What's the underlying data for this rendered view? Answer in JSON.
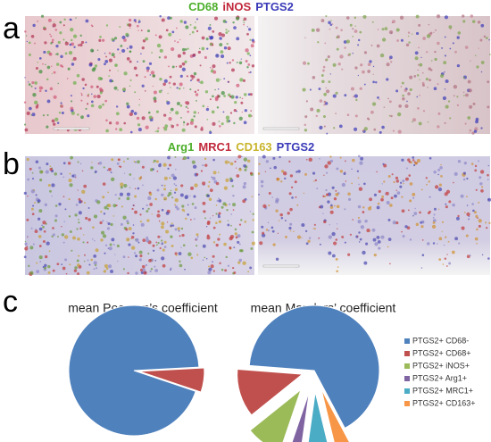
{
  "figure": {
    "panel_a": {
      "label": "a",
      "stains": [
        {
          "text": "CD68",
          "color": "#4caf2a"
        },
        {
          "text": "iNOS",
          "color": "#c0283a"
        },
        {
          "text": "PTGS2",
          "color": "#3a3ab8"
        }
      ]
    },
    "panel_b": {
      "label": "b",
      "stains": [
        {
          "text": "Arg1",
          "color": "#4caf2a"
        },
        {
          "text": "MRC1",
          "color": "#c0283a"
        },
        {
          "text": "CD163",
          "color": "#c8b42a"
        },
        {
          "text": "PTGS2",
          "color": "#3a3ab8"
        }
      ]
    },
    "panel_c": {
      "label": "c"
    }
  },
  "chart_data": [
    {
      "type": "pie",
      "title": "mean Pearson’s coefficient",
      "values": [
        94,
        6
      ],
      "colors": [
        "#4f81bd",
        "#c0504d"
      ]
    },
    {
      "type": "pie",
      "title": "mean Manders’ coefficient",
      "categories": [
        "PTGS2+ CD68-",
        "PTGS2+ CD68+",
        "PTGS2+ iNOS+",
        "PTGS2+ Arg1+",
        "PTGS2+ MRC1+",
        "PTGS2+ CD163+"
      ],
      "values": [
        66,
        12,
        9,
        3,
        6,
        4
      ],
      "colors": [
        "#4f81bd",
        "#c0504d",
        "#9bbb59",
        "#8064a2",
        "#4bacc6",
        "#f79646"
      ]
    }
  ]
}
